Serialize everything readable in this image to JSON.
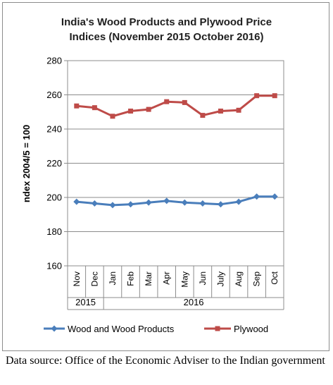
{
  "chart_data": {
    "type": "line",
    "title": "India's Wood Products and Plywood Price Indices (November 2015 October 2016)",
    "title_lines": [
      "India's Wood Products and Plywood Price",
      "Indices (November 2015 October 2016)"
    ],
    "ylabel": "ndex 2004/5 = 100",
    "xlabel": "",
    "ylim": [
      160,
      280
    ],
    "yticks": [
      160,
      180,
      200,
      220,
      240,
      260,
      280
    ],
    "categories": [
      "Nov",
      "Dec",
      "Jan",
      "Feb",
      "Mar",
      "Apr",
      "May",
      "Jun",
      "July",
      "Aug",
      "Sep",
      "Oct"
    ],
    "year_groups": [
      {
        "label": "2015",
        "start": 0,
        "end": 1
      },
      {
        "label": "2016",
        "start": 2,
        "end": 11
      }
    ],
    "grid": true,
    "legend_position": "bottom",
    "series": [
      {
        "name": "Wood and Wood Products",
        "color": "#4a7ebb",
        "marker": "diamond",
        "values": [
          197.5,
          196.5,
          195.5,
          196,
          197,
          198,
          197,
          196.5,
          196,
          197.5,
          200.5,
          200.5
        ]
      },
      {
        "name": "Plywood",
        "color": "#be4b48",
        "marker": "square",
        "values": [
          253.5,
          252.5,
          247.5,
          250.5,
          251.5,
          256,
          255.5,
          248,
          250.5,
          251,
          259.5,
          259.5
        ]
      }
    ]
  },
  "source_note": "Data source: Office of the Economic Adviser to the Indian government"
}
